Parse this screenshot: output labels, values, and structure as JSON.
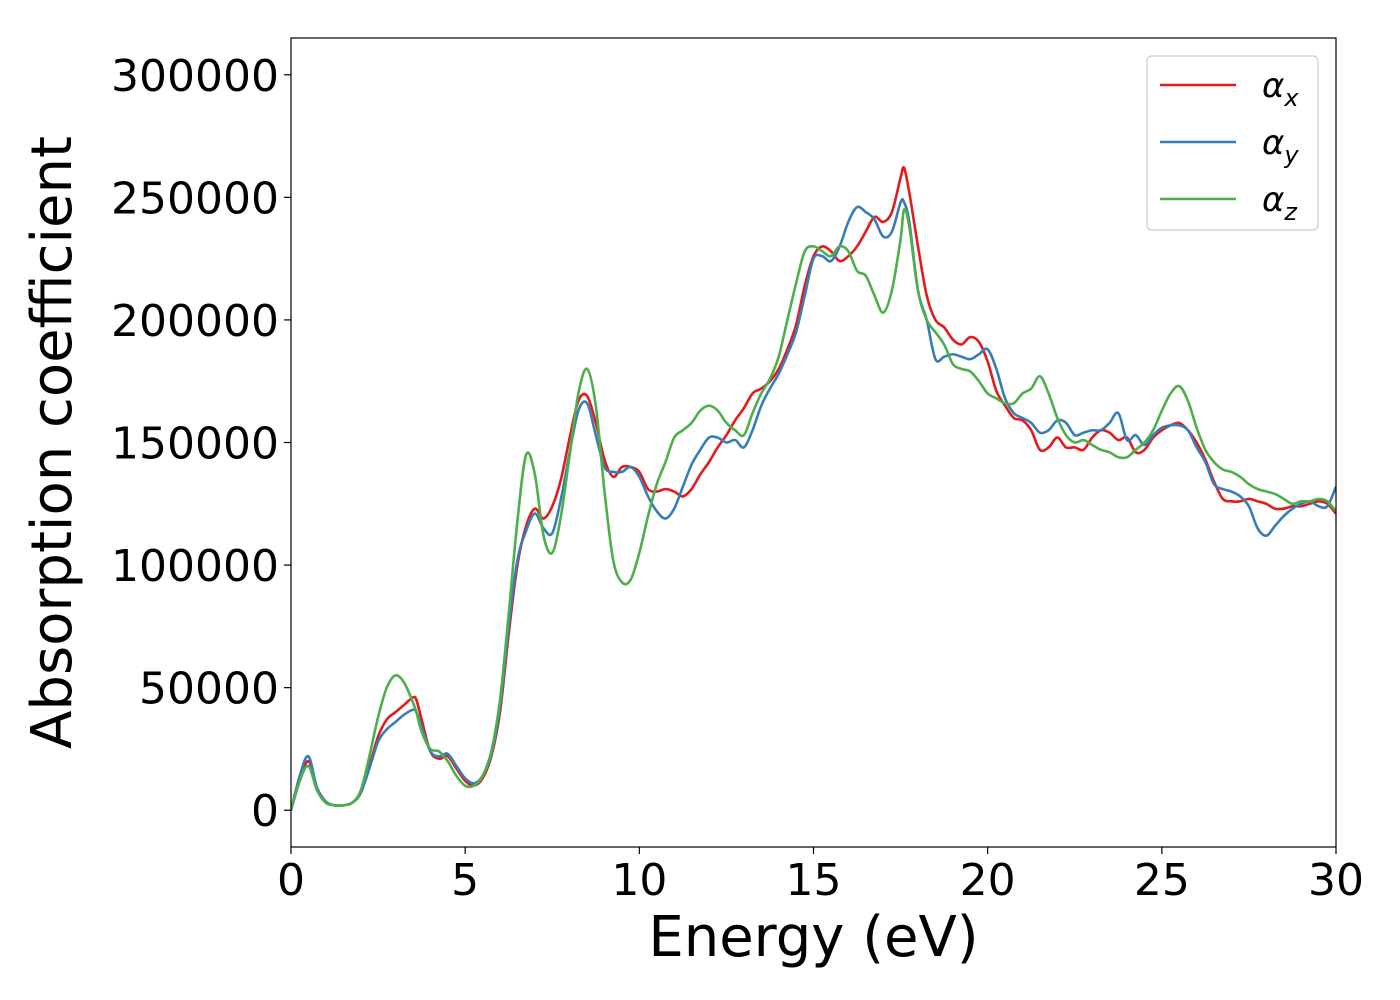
{
  "chart_data": {
    "type": "line",
    "title": "",
    "xlabel": "Energy (eV)",
    "ylabel": "Absorption coefficient",
    "xlim": [
      0,
      30
    ],
    "ylim": [
      -15000,
      315000
    ],
    "x_ticks": [
      0,
      5,
      10,
      15,
      20,
      25,
      30
    ],
    "y_ticks": [
      0,
      50000,
      100000,
      150000,
      200000,
      250000,
      300000
    ],
    "grid": false,
    "legend_position": "top-right",
    "series": [
      {
        "name": "αx",
        "name_base": "α",
        "name_sub": "x",
        "color": "#e41a1c",
        "x": [
          0,
          0.25,
          0.5,
          0.75,
          1.0,
          1.25,
          1.5,
          1.75,
          2.0,
          2.25,
          2.5,
          2.75,
          3.0,
          3.25,
          3.5,
          3.6,
          3.75,
          4.0,
          4.25,
          4.5,
          4.75,
          5.0,
          5.25,
          5.5,
          5.75,
          6.0,
          6.25,
          6.5,
          6.75,
          7.0,
          7.25,
          7.5,
          7.75,
          8.0,
          8.25,
          8.5,
          8.75,
          9.0,
          9.25,
          9.5,
          9.75,
          10.0,
          10.25,
          10.5,
          10.75,
          11.0,
          11.25,
          11.5,
          11.75,
          12.0,
          12.25,
          12.5,
          12.75,
          13.0,
          13.25,
          13.5,
          13.75,
          14.0,
          14.25,
          14.5,
          14.75,
          15.0,
          15.25,
          15.5,
          15.75,
          16.0,
          16.25,
          16.5,
          16.75,
          17.0,
          17.25,
          17.5,
          17.6,
          17.75,
          18.0,
          18.25,
          18.5,
          18.75,
          19.0,
          19.25,
          19.5,
          19.75,
          20.0,
          20.25,
          20.5,
          20.75,
          21.0,
          21.25,
          21.5,
          21.75,
          22.0,
          22.25,
          22.5,
          22.75,
          23.0,
          23.25,
          23.5,
          23.75,
          24.0,
          24.25,
          24.5,
          24.75,
          25.0,
          25.25,
          25.5,
          25.75,
          26.0,
          26.25,
          26.5,
          26.75,
          27.0,
          27.25,
          27.5,
          27.75,
          28.0,
          28.25,
          28.5,
          28.75,
          29.0,
          29.25,
          29.5,
          29.75,
          30.0
        ],
        "y": [
          0,
          12000,
          20000,
          9000,
          3500,
          2000,
          2000,
          3000,
          7000,
          18000,
          30000,
          37000,
          40000,
          43000,
          46000,
          45000,
          37000,
          24000,
          21000,
          22000,
          17000,
          12000,
          10000,
          13000,
          22000,
          40000,
          72000,
          100000,
          116000,
          123000,
          119000,
          124000,
          135000,
          152000,
          167000,
          169000,
          158000,
          143000,
          136000,
          140000,
          140000,
          138000,
          131000,
          130000,
          131000,
          130000,
          128000,
          131000,
          137000,
          142000,
          148000,
          153000,
          159000,
          164000,
          170000,
          172000,
          175000,
          180000,
          188000,
          198000,
          214000,
          226000,
          230000,
          228000,
          224000,
          226000,
          230000,
          236000,
          242000,
          240000,
          244000,
          258000,
          262000,
          252000,
          230000,
          210000,
          200000,
          197000,
          192000,
          190000,
          193000,
          191000,
          183000,
          171000,
          165000,
          160000,
          159000,
          155000,
          147000,
          148000,
          152000,
          148000,
          148000,
          147000,
          152000,
          155000,
          154000,
          151000,
          152000,
          146000,
          147000,
          152000,
          155000,
          157000,
          158000,
          155000,
          150000,
          143000,
          134000,
          127000,
          126000,
          126000,
          127000,
          126000,
          125000,
          123000,
          123000,
          124000,
          124000,
          125000,
          126000,
          125000,
          121000
        ]
      },
      {
        "name": "αy",
        "name_base": "α",
        "name_sub": "y",
        "color": "#377eb8",
        "x": [
          0,
          0.25,
          0.5,
          0.75,
          1.0,
          1.25,
          1.5,
          1.75,
          2.0,
          2.25,
          2.5,
          2.75,
          3.0,
          3.25,
          3.5,
          3.6,
          3.75,
          4.0,
          4.25,
          4.5,
          4.75,
          5.0,
          5.25,
          5.5,
          5.75,
          6.0,
          6.25,
          6.5,
          6.75,
          7.0,
          7.25,
          7.5,
          7.75,
          8.0,
          8.25,
          8.5,
          8.75,
          9.0,
          9.25,
          9.5,
          9.75,
          10.0,
          10.25,
          10.5,
          10.75,
          11.0,
          11.25,
          11.5,
          11.75,
          12.0,
          12.25,
          12.5,
          12.75,
          13.0,
          13.25,
          13.5,
          13.75,
          14.0,
          14.25,
          14.5,
          14.75,
          15.0,
          15.25,
          15.5,
          15.75,
          16.0,
          16.25,
          16.5,
          16.75,
          17.0,
          17.25,
          17.5,
          17.6,
          17.75,
          18.0,
          18.25,
          18.5,
          18.75,
          19.0,
          19.25,
          19.5,
          19.75,
          20.0,
          20.25,
          20.5,
          20.75,
          21.0,
          21.25,
          21.5,
          21.75,
          22.0,
          22.25,
          22.5,
          22.75,
          23.0,
          23.25,
          23.5,
          23.75,
          24.0,
          24.25,
          24.5,
          24.75,
          25.0,
          25.25,
          25.5,
          25.75,
          26.0,
          26.25,
          26.5,
          26.75,
          27.0,
          27.25,
          27.5,
          27.75,
          28.0,
          28.25,
          28.5,
          28.75,
          29.0,
          29.25,
          29.5,
          29.75,
          30.0
        ],
        "y": [
          0,
          14000,
          22000,
          9000,
          3500,
          2000,
          2000,
          3000,
          7000,
          17000,
          28000,
          33000,
          36000,
          39000,
          41000,
          40000,
          34000,
          24000,
          22000,
          23000,
          18000,
          13000,
          11000,
          14000,
          23000,
          42000,
          75000,
          102000,
          114000,
          121000,
          115000,
          113000,
          127000,
          146000,
          163000,
          166000,
          153000,
          140000,
          138000,
          138000,
          140000,
          136000,
          128000,
          122000,
          119000,
          123000,
          132000,
          141000,
          147000,
          152000,
          152000,
          150000,
          151000,
          148000,
          155000,
          165000,
          172000,
          178000,
          186000,
          195000,
          210000,
          225000,
          226000,
          224000,
          230000,
          240000,
          246000,
          244000,
          241000,
          234000,
          236000,
          248000,
          248000,
          240000,
          212000,
          200000,
          184000,
          185000,
          186000,
          185000,
          184000,
          186000,
          188000,
          180000,
          168000,
          162000,
          160000,
          158000,
          154000,
          155000,
          159000,
          158000,
          153000,
          154000,
          155000,
          155000,
          158000,
          162000,
          151000,
          153000,
          149000,
          153000,
          156000,
          157000,
          157000,
          155000,
          148000,
          142000,
          133000,
          131000,
          130000,
          128000,
          124000,
          115000,
          112000,
          116000,
          120000,
          123000,
          125000,
          126000,
          124000,
          124000,
          132000
        ]
      },
      {
        "name": "αz",
        "name_base": "α",
        "name_sub": "z",
        "color": "#4daf4a",
        "x": [
          0,
          0.25,
          0.5,
          0.75,
          1.0,
          1.25,
          1.5,
          1.75,
          2.0,
          2.25,
          2.5,
          2.75,
          3.0,
          3.25,
          3.5,
          3.6,
          3.75,
          4.0,
          4.25,
          4.5,
          4.75,
          5.0,
          5.25,
          5.5,
          5.75,
          6.0,
          6.25,
          6.5,
          6.75,
          7.0,
          7.25,
          7.5,
          7.75,
          8.0,
          8.25,
          8.5,
          8.75,
          9.0,
          9.25,
          9.5,
          9.75,
          10.0,
          10.25,
          10.5,
          10.75,
          11.0,
          11.25,
          11.5,
          11.75,
          12.0,
          12.25,
          12.5,
          12.75,
          13.0,
          13.25,
          13.5,
          13.75,
          14.0,
          14.25,
          14.5,
          14.75,
          15.0,
          15.25,
          15.5,
          15.75,
          16.0,
          16.25,
          16.5,
          16.75,
          17.0,
          17.25,
          17.5,
          17.6,
          17.75,
          18.0,
          18.25,
          18.5,
          18.75,
          19.0,
          19.25,
          19.5,
          19.75,
          20.0,
          20.25,
          20.5,
          20.75,
          21.0,
          21.25,
          21.5,
          21.75,
          22.0,
          22.25,
          22.5,
          22.75,
          23.0,
          23.25,
          23.5,
          23.75,
          24.0,
          24.25,
          24.5,
          24.75,
          25.0,
          25.25,
          25.5,
          25.75,
          26.0,
          26.25,
          26.5,
          26.75,
          27.0,
          27.25,
          27.5,
          27.75,
          28.0,
          28.25,
          28.5,
          28.75,
          29.0,
          29.25,
          29.5,
          29.75,
          30.0
        ],
        "y": [
          0,
          12000,
          18000,
          8000,
          3000,
          2000,
          2000,
          3000,
          8000,
          22000,
          38000,
          50000,
          55000,
          52000,
          44000,
          40000,
          32000,
          25000,
          24000,
          20000,
          14000,
          10000,
          10000,
          14000,
          24000,
          45000,
          80000,
          118000,
          145000,
          137000,
          112000,
          105000,
          120000,
          145000,
          170000,
          180000,
          165000,
          130000,
          102000,
          93000,
          94000,
          105000,
          120000,
          133000,
          142000,
          152000,
          155000,
          158000,
          163000,
          165000,
          163000,
          158000,
          155000,
          153000,
          162000,
          170000,
          176000,
          185000,
          200000,
          215000,
          228000,
          230000,
          228000,
          226000,
          230000,
          228000,
          220000,
          218000,
          210000,
          203000,
          212000,
          233000,
          245000,
          238000,
          212000,
          200000,
          195000,
          190000,
          182000,
          180000,
          179000,
          175000,
          170000,
          168000,
          166000,
          166000,
          170000,
          172000,
          177000,
          170000,
          160000,
          153000,
          150000,
          151000,
          149000,
          147000,
          146000,
          144000,
          144000,
          147000,
          150000,
          155000,
          163000,
          170000,
          173000,
          167000,
          156000,
          147000,
          142000,
          139000,
          138000,
          136000,
          133000,
          131000,
          130000,
          129000,
          127000,
          125000,
          126000,
          126000,
          127000,
          126000,
          122000
        ]
      }
    ]
  }
}
